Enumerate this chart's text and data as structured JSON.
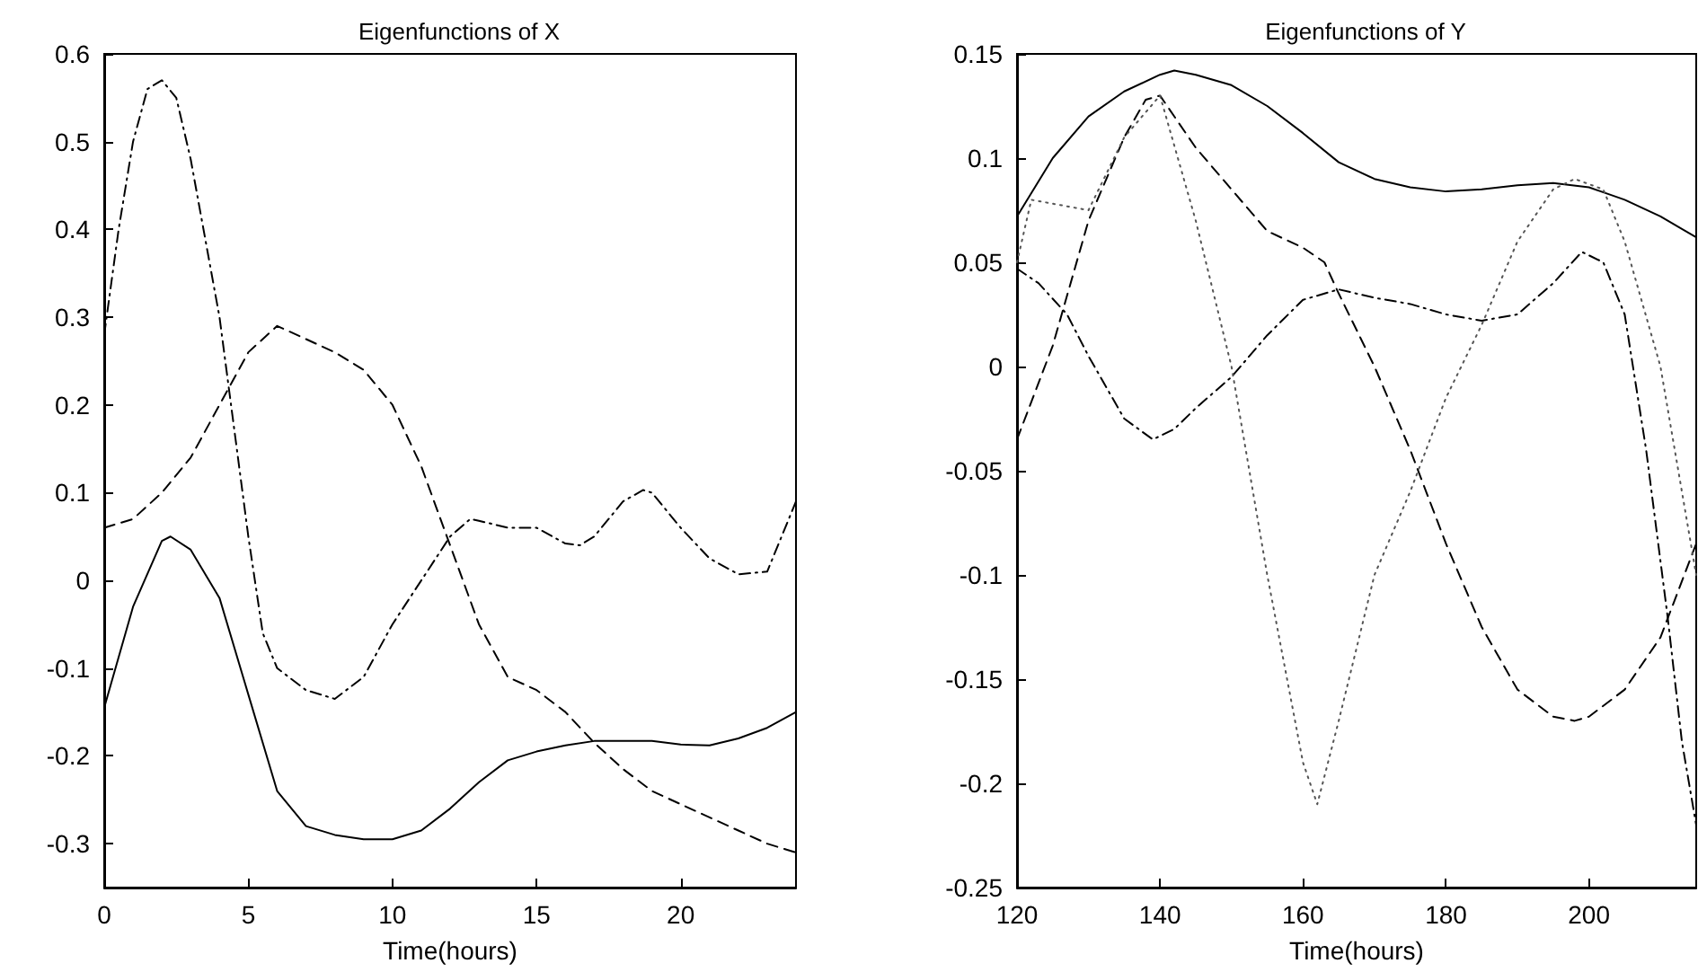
{
  "chart_data": [
    {
      "type": "line",
      "title": "Eigenfunctions of X",
      "xlabel": "Time(hours)",
      "xlim": [
        0,
        24
      ],
      "xticks": [
        0,
        5,
        10,
        15,
        20
      ],
      "ylim": [
        -0.35,
        0.6
      ],
      "yticks": [
        -0.3,
        -0.2,
        -0.1,
        0,
        0.1,
        0.2,
        0.3,
        0.4,
        0.5,
        0.6
      ],
      "series": [
        {
          "color": "#000000",
          "line_style": "solid",
          "x": [
            0,
            1,
            2,
            2.3,
            3,
            4,
            5,
            6,
            7,
            8,
            9,
            10,
            11,
            12,
            13,
            14,
            15,
            16,
            17,
            18,
            19,
            20,
            21,
            22,
            23,
            24
          ],
          "values": [
            -0.145,
            -0.03,
            0.045,
            0.05,
            0.035,
            -0.02,
            -0.13,
            -0.24,
            -0.28,
            -0.29,
            -0.295,
            -0.295,
            -0.285,
            -0.26,
            -0.23,
            -0.205,
            -0.195,
            -0.188,
            -0.183,
            -0.183,
            -0.183,
            -0.187,
            -0.188,
            -0.18,
            -0.168,
            -0.15
          ]
        },
        {
          "color": "#000000",
          "line_style": "dashed",
          "x": [
            0,
            1,
            2,
            3,
            4,
            5,
            6,
            7,
            8,
            9,
            10,
            11,
            12,
            13,
            14,
            15,
            16,
            17,
            18,
            19,
            20,
            21,
            22,
            23,
            24
          ],
          "values": [
            0.06,
            0.07,
            0.1,
            0.14,
            0.2,
            0.26,
            0.29,
            0.275,
            0.26,
            0.24,
            0.2,
            0.13,
            0.04,
            -0.05,
            -0.11,
            -0.125,
            -0.15,
            -0.185,
            -0.215,
            -0.24,
            -0.255,
            -0.27,
            -0.285,
            -0.3,
            -0.31
          ]
        },
        {
          "color": "#000000",
          "line_style": "dashdot",
          "x": [
            0,
            0.5,
            1,
            1.5,
            2,
            2.5,
            3,
            4,
            5,
            5.5,
            6,
            7,
            8,
            9,
            10,
            11,
            12,
            12.7,
            13,
            14,
            15,
            16,
            16.5,
            17,
            18,
            18.7,
            19,
            20,
            21,
            22,
            23,
            24
          ],
          "values": [
            0.28,
            0.4,
            0.5,
            0.56,
            0.57,
            0.55,
            0.48,
            0.3,
            0.05,
            -0.06,
            -0.1,
            -0.125,
            -0.135,
            -0.11,
            -0.05,
            0,
            0.05,
            0.07,
            0.068,
            0.06,
            0.06,
            0.042,
            0.04,
            0.05,
            0.09,
            0.103,
            0.1,
            0.06,
            0.025,
            0.007,
            0.01,
            0.09
          ]
        }
      ]
    },
    {
      "type": "line",
      "title": "Eigenfunctions of Y",
      "xlabel": "Time(hours)",
      "xlim": [
        120,
        215
      ],
      "xticks": [
        120,
        140,
        160,
        180,
        200
      ],
      "ylim": [
        -0.25,
        0.15
      ],
      "yticks": [
        -0.25,
        -0.2,
        -0.15,
        -0.1,
        -0.05,
        0,
        0.05,
        0.1,
        0.15
      ],
      "series": [
        {
          "color": "#000000",
          "line_style": "solid",
          "x": [
            120,
            125,
            130,
            135,
            140,
            142,
            145,
            150,
            155,
            160,
            165,
            170,
            175,
            180,
            185,
            190,
            195,
            200,
            205,
            210,
            215
          ],
          "values": [
            0.072,
            0.1,
            0.12,
            0.132,
            0.14,
            0.142,
            0.14,
            0.135,
            0.125,
            0.112,
            0.098,
            0.09,
            0.086,
            0.084,
            0.085,
            0.087,
            0.088,
            0.086,
            0.08,
            0.072,
            0.062
          ]
        },
        {
          "color": "#000000",
          "line_style": "dashed",
          "x": [
            120,
            125,
            130,
            135,
            138,
            140,
            145,
            150,
            155,
            160,
            163,
            165,
            170,
            175,
            180,
            185,
            190,
            195,
            198,
            200,
            205,
            210,
            215
          ],
          "values": [
            -0.035,
            0.01,
            0.07,
            0.11,
            0.128,
            0.13,
            0.105,
            0.085,
            0.065,
            0.057,
            0.05,
            0.035,
            0,
            -0.04,
            -0.085,
            -0.125,
            -0.155,
            -0.168,
            -0.17,
            -0.168,
            -0.155,
            -0.13,
            -0.085
          ]
        },
        {
          "color": "#000000",
          "line_style": "dashdot",
          "x": [
            120,
            123,
            127,
            130,
            135,
            139,
            142,
            145,
            150,
            155,
            160,
            165,
            170,
            175,
            180,
            185,
            190,
            195,
            199,
            202,
            205,
            208,
            211,
            213,
            215
          ],
          "values": [
            0.047,
            0.04,
            0.025,
            0.005,
            -0.025,
            -0.035,
            -0.03,
            -0.02,
            -0.005,
            0.015,
            0.032,
            0.037,
            0.033,
            0.03,
            0.025,
            0.022,
            0.025,
            0.04,
            0.055,
            0.05,
            0.025,
            -0.04,
            -0.12,
            -0.18,
            -0.22
          ]
        },
        {
          "color": "#555555",
          "line_style": "dotted",
          "x": [
            120,
            122,
            130,
            135,
            140,
            145,
            150,
            155,
            160,
            162,
            165,
            170,
            175,
            180,
            185,
            190,
            195,
            198,
            202,
            205,
            210,
            213,
            215
          ],
          "values": [
            0.05,
            0.08,
            0.075,
            0.11,
            0.13,
            0.07,
            0,
            -0.1,
            -0.19,
            -0.21,
            -0.17,
            -0.1,
            -0.06,
            -0.015,
            0.02,
            0.06,
            0.085,
            0.09,
            0.085,
            0.06,
            0,
            -0.06,
            -0.1
          ]
        }
      ]
    }
  ]
}
